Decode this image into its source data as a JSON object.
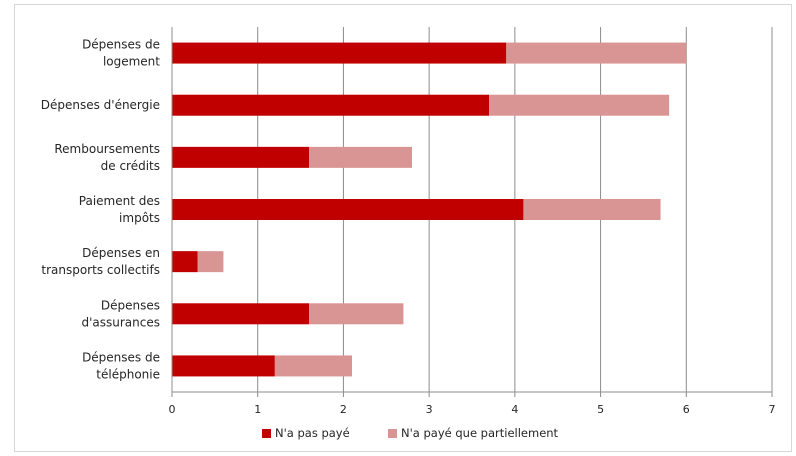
{
  "chart_data": {
    "type": "bar",
    "orientation": "horizontal",
    "stacked": true,
    "categories": [
      [
        "Dépenses de",
        "logement"
      ],
      [
        "Dépenses d'énergie"
      ],
      [
        "Remboursements",
        "de crédits"
      ],
      [
        "Paiement des",
        "impôts"
      ],
      [
        "Dépenses en",
        "transports collectifs"
      ],
      [
        "Dépenses",
        "d'assurances"
      ],
      [
        "Dépenses de",
        "téléphonie"
      ]
    ],
    "series": [
      {
        "name": "N'a pas payé",
        "color": "#c00000",
        "values": [
          3.9,
          3.7,
          1.6,
          4.1,
          0.3,
          1.6,
          1.2
        ]
      },
      {
        "name": "N'a payé que partiellement",
        "color": "#d99594",
        "values": [
          2.1,
          2.1,
          1.2,
          1.6,
          0.3,
          1.1,
          0.9
        ]
      }
    ],
    "xlim": [
      0,
      7
    ],
    "xticks": [
      "0",
      "1",
      "2",
      "3",
      "4",
      "5",
      "6",
      "7"
    ],
    "grid": true,
    "legend_position": "bottom"
  }
}
